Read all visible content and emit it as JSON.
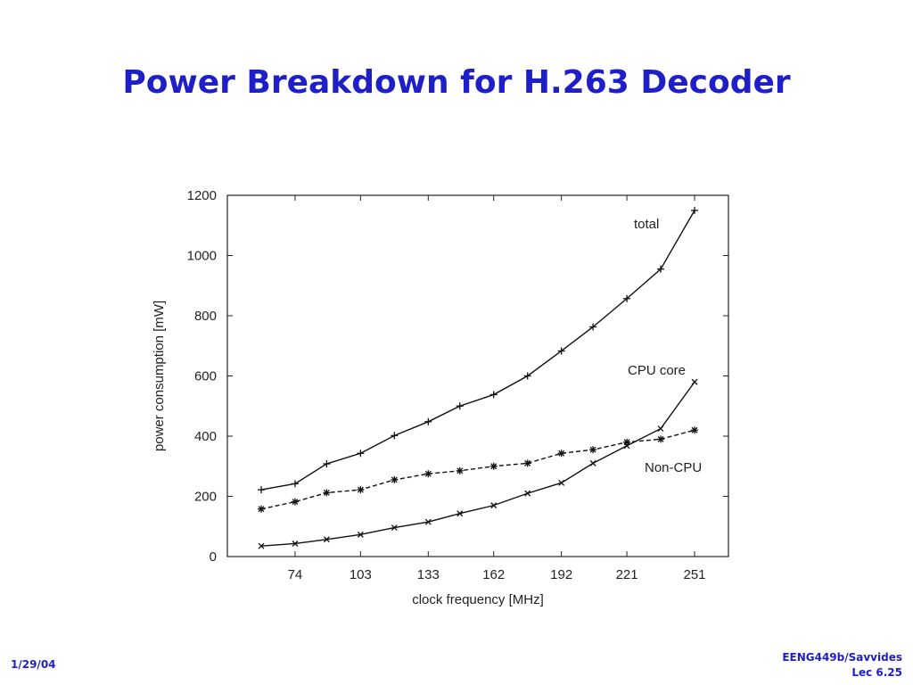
{
  "slide": {
    "title": "Power Breakdown for H.263 Decoder",
    "date": "1/29/04",
    "course": "EENG449b/Savvides",
    "lecture": "Lec 6.25",
    "accent_color": "#1f1fc8"
  },
  "chart_data": {
    "type": "line",
    "title": "",
    "xlabel": "clock frequency [MHz]",
    "ylabel": "power consumption [mW]",
    "xlim": [
      44,
      266
    ],
    "ylim": [
      0,
      1200
    ],
    "xticks": [
      74,
      103,
      133,
      162,
      192,
      221,
      251
    ],
    "yticks": [
      0,
      200,
      400,
      600,
      800,
      1000,
      1200
    ],
    "grid": false,
    "legend": "none (inline labels)",
    "x": [
      59,
      74,
      88,
      103,
      118,
      133,
      147,
      162,
      177,
      192,
      206,
      221,
      236,
      251
    ],
    "series": [
      {
        "name": "total",
        "marker": "+",
        "values": [
          222,
          242,
          308,
          343,
          402,
          448,
          500,
          538,
          600,
          683,
          763,
          857,
          955,
          1150
        ]
      },
      {
        "name": "CPU core",
        "marker": "x",
        "values": [
          35,
          43,
          57,
          73,
          96,
          115,
          143,
          170,
          210,
          245,
          310,
          368,
          425,
          580
        ]
      },
      {
        "name": "Non-CPU",
        "marker": "*",
        "values": [
          158,
          182,
          212,
          222,
          255,
          275,
          285,
          300,
          310,
          343,
          355,
          380,
          390,
          420
        ]
      }
    ]
  }
}
